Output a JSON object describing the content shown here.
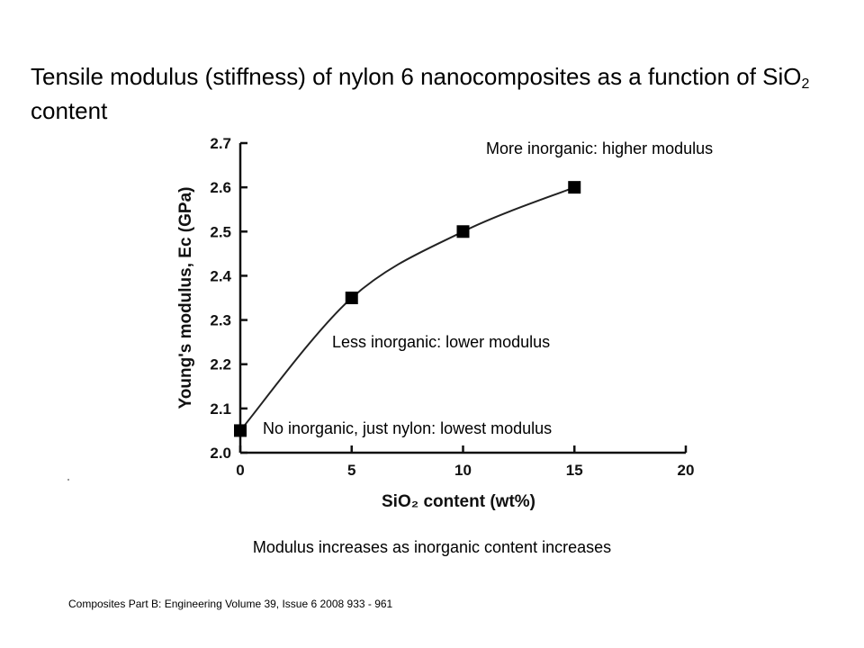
{
  "slide": {
    "title_part1": "Tensile modulus (stiffness) of nylon 6 nanocomposites as a function of SiO",
    "title_sub": "2",
    "title_part2": " content",
    "annotation_high": "More inorganic: higher modulus",
    "annotation_mid": "Less inorganic: lower modulus",
    "annotation_low": "No inorganic, just nylon: lowest modulus",
    "caption": "Modulus increases as inorganic content increases",
    "citation": "Composites Part B: Engineering Volume 39, Issue 6 2008 933 - 961"
  },
  "chart_data": {
    "type": "line",
    "title": "",
    "xlabel": "SiO₂ content (wt%)",
    "ylabel": "Young's modulus, Ec (GPa)",
    "xlim": [
      0,
      20
    ],
    "ylim": [
      2.0,
      2.7
    ],
    "xticks": [
      0,
      5,
      10,
      15,
      20
    ],
    "yticks": [
      2.0,
      2.1,
      2.2,
      2.3,
      2.4,
      2.5,
      2.6,
      2.7
    ],
    "grid": false,
    "marker": "square",
    "series": [
      {
        "x": [
          0,
          5,
          10,
          15
        ],
        "y": [
          2.05,
          2.35,
          2.5,
          2.6
        ]
      }
    ]
  }
}
